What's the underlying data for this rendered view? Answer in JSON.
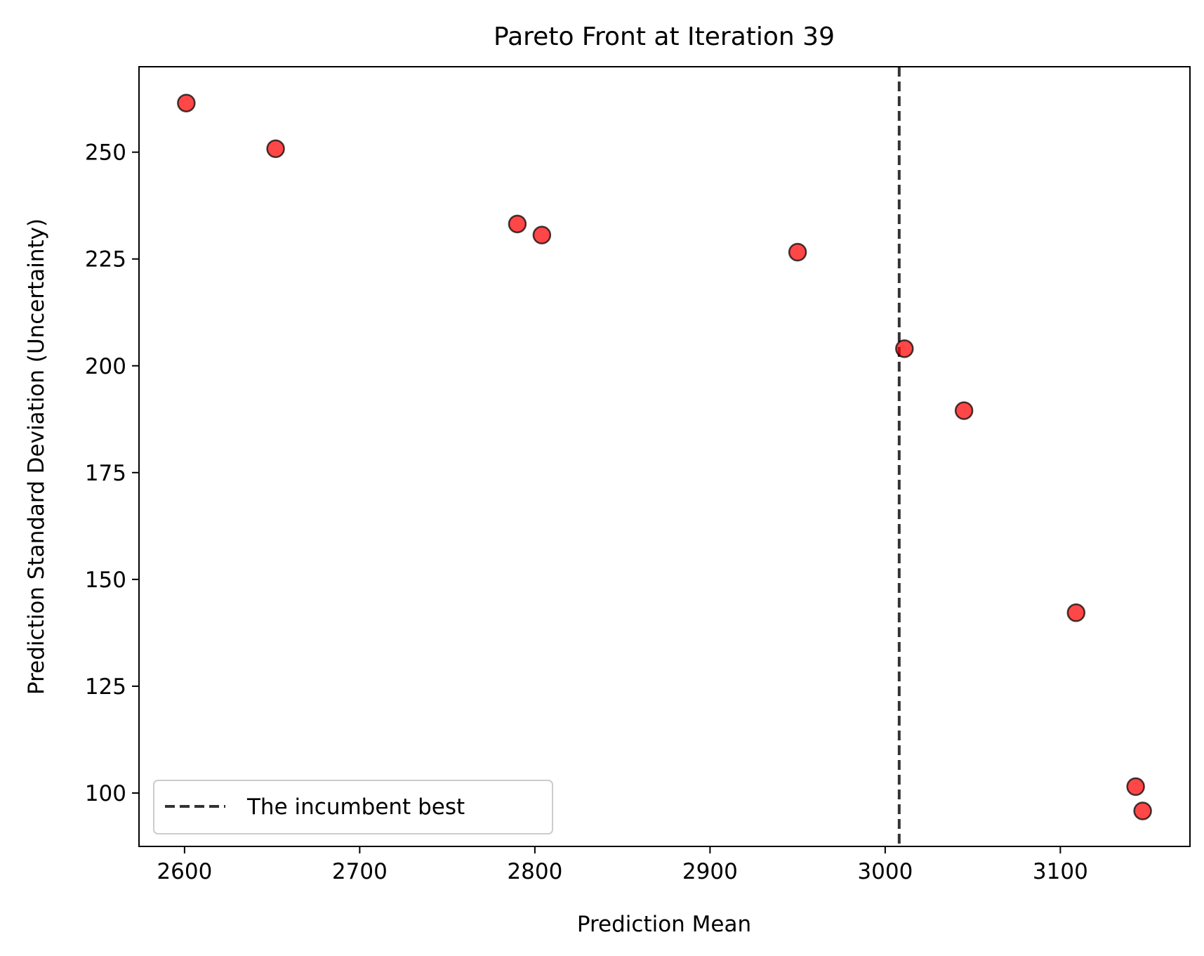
{
  "chart_data": {
    "type": "scatter",
    "title": "Pareto Front at Iteration 39",
    "xlabel": "Prediction Mean",
    "ylabel": "Prediction Standard Deviation (Uncertainty)",
    "xlim": [
      2574,
      3174
    ],
    "ylim": [
      87.5,
      270
    ],
    "xticks": [
      2600,
      2700,
      2800,
      2900,
      3000,
      3100
    ],
    "yticks": [
      100,
      125,
      150,
      175,
      200,
      225,
      250
    ],
    "grid": false,
    "legend_position": "lower-left",
    "points": [
      {
        "x": 2601,
        "y": 261.5
      },
      {
        "x": 2652,
        "y": 250.8
      },
      {
        "x": 2790,
        "y": 233.2
      },
      {
        "x": 2804,
        "y": 230.6
      },
      {
        "x": 2950,
        "y": 226.6
      },
      {
        "x": 3011,
        "y": 204.0
      },
      {
        "x": 3045,
        "y": 189.5
      },
      {
        "x": 3109,
        "y": 142.2
      },
      {
        "x": 3143,
        "y": 101.5
      },
      {
        "x": 3147,
        "y": 95.8
      }
    ],
    "reference_line": {
      "orientation": "vertical",
      "x": 3008,
      "style": "dashed",
      "label": "The incumbent best"
    },
    "colors": {
      "marker_fill": "#ff0000",
      "marker_edge": "#000000",
      "reference_line": "#333333"
    }
  }
}
